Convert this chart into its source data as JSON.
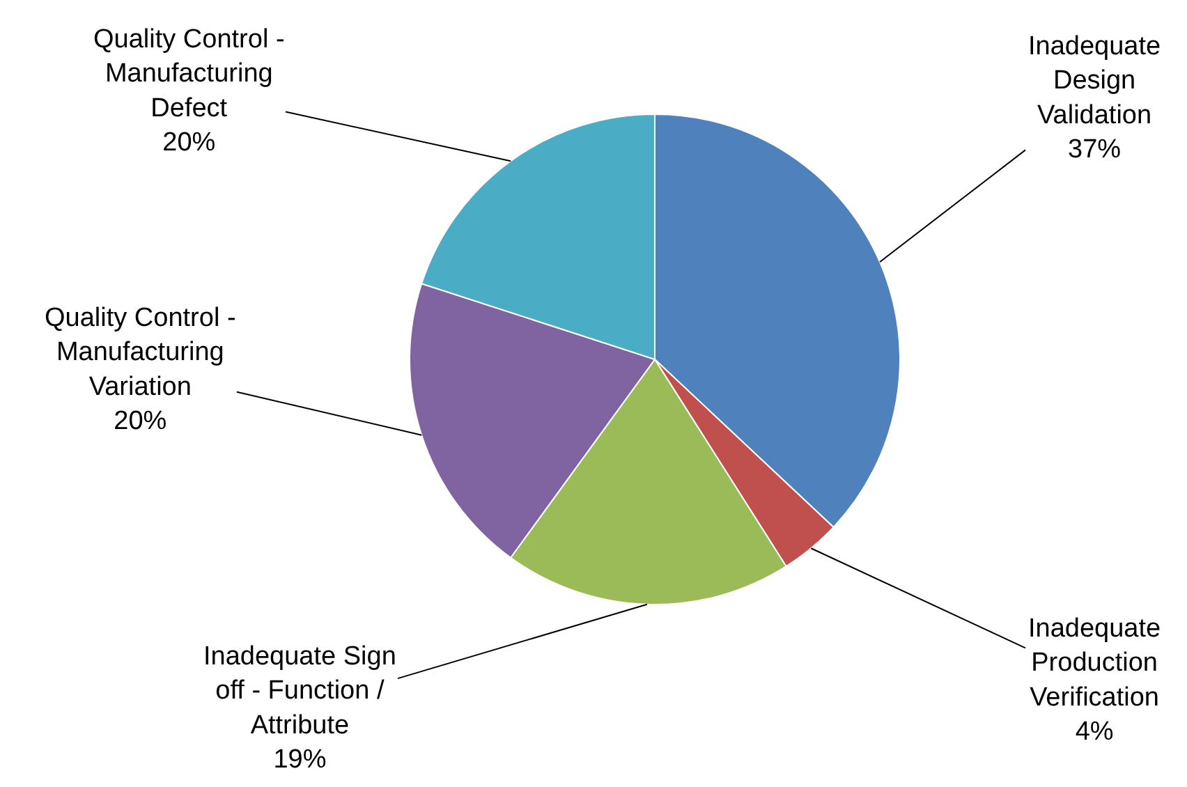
{
  "chart_data": {
    "type": "pie",
    "categories": [
      "Inadequate\nDesign\nValidation",
      "Inadequate\nProduction\nVerification",
      "Inadequate Sign\noff - Function /\nAttribute",
      "Quality Control -\nManufacturing\nVariation",
      "Quality Control -\nManufacturing\nDefect"
    ],
    "values": [
      37,
      4,
      19,
      20,
      20
    ],
    "value_labels": [
      "37%",
      "4%",
      "19%",
      "20%",
      "20%"
    ],
    "colors": [
      "#4f81bd",
      "#c0504d",
      "#9bbb59",
      "#8064a2",
      "#4bacc6"
    ],
    "legend": false
  }
}
